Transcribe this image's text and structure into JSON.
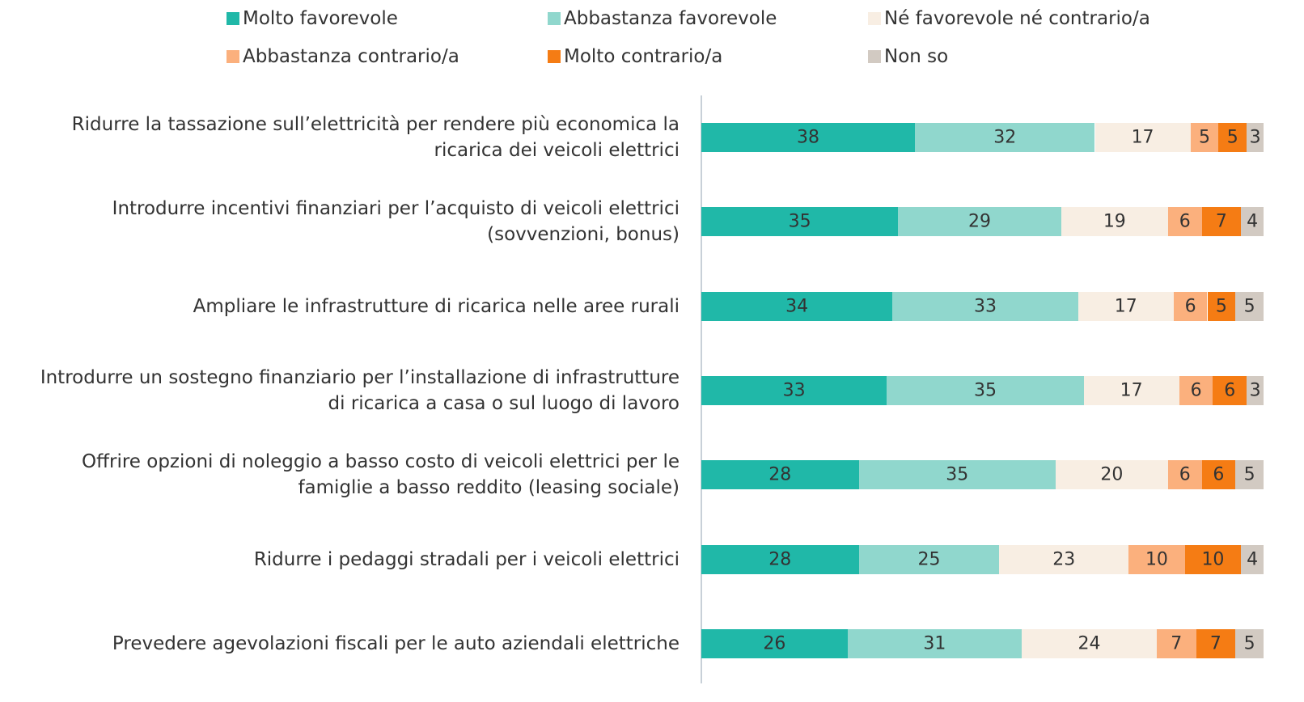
{
  "chart_data": {
    "type": "stacked-bar-horizontal",
    "categories": [
      "Ridurre la tassazione sull’elettricità per rendere più economica la\nricarica dei veicoli elettrici",
      "Introdurre incentivi finanziari per l’acquisto di veicoli elettrici\n(sovvenzioni, bonus)",
      "Ampliare le infrastrutture di ricarica nelle aree rurali",
      "Introdurre un sostegno finanziario per l’installazione di infrastrutture\ndi ricarica a casa o sul luogo di lavoro",
      "Offrire opzioni di noleggio a basso costo di veicoli elettrici per le\nfamiglie a basso reddito (leasing sociale)",
      "Ridurre i pedaggi stradali per i veicoli elettrici",
      "Prevedere agevolazioni fiscali per le auto aziendali elettriche"
    ],
    "series": [
      {
        "name": "Molto favorevole",
        "color": "#20b8a8",
        "values": [
          38,
          35,
          34,
          33,
          28,
          28,
          26
        ]
      },
      {
        "name": "Abbastanza favorevole",
        "color": "#90d7cd",
        "values": [
          32,
          29,
          33,
          35,
          35,
          25,
          31
        ]
      },
      {
        "name": "Né favorevole né contrario/a",
        "color": "#f8eee3",
        "values": [
          17,
          19,
          17,
          17,
          20,
          23,
          24
        ]
      },
      {
        "name": "Abbastanza contrario/a",
        "color": "#fbb07d",
        "values": [
          5,
          6,
          6,
          6,
          6,
          10,
          7
        ]
      },
      {
        "name": "Molto contrario/a",
        "color": "#f57c14",
        "values": [
          5,
          7,
          5,
          6,
          6,
          10,
          7
        ]
      },
      {
        "name": "Non so",
        "color": "#d2cac2",
        "values": [
          3,
          4,
          5,
          3,
          5,
          4,
          5
        ]
      }
    ],
    "xlim": [
      0,
      100
    ]
  }
}
